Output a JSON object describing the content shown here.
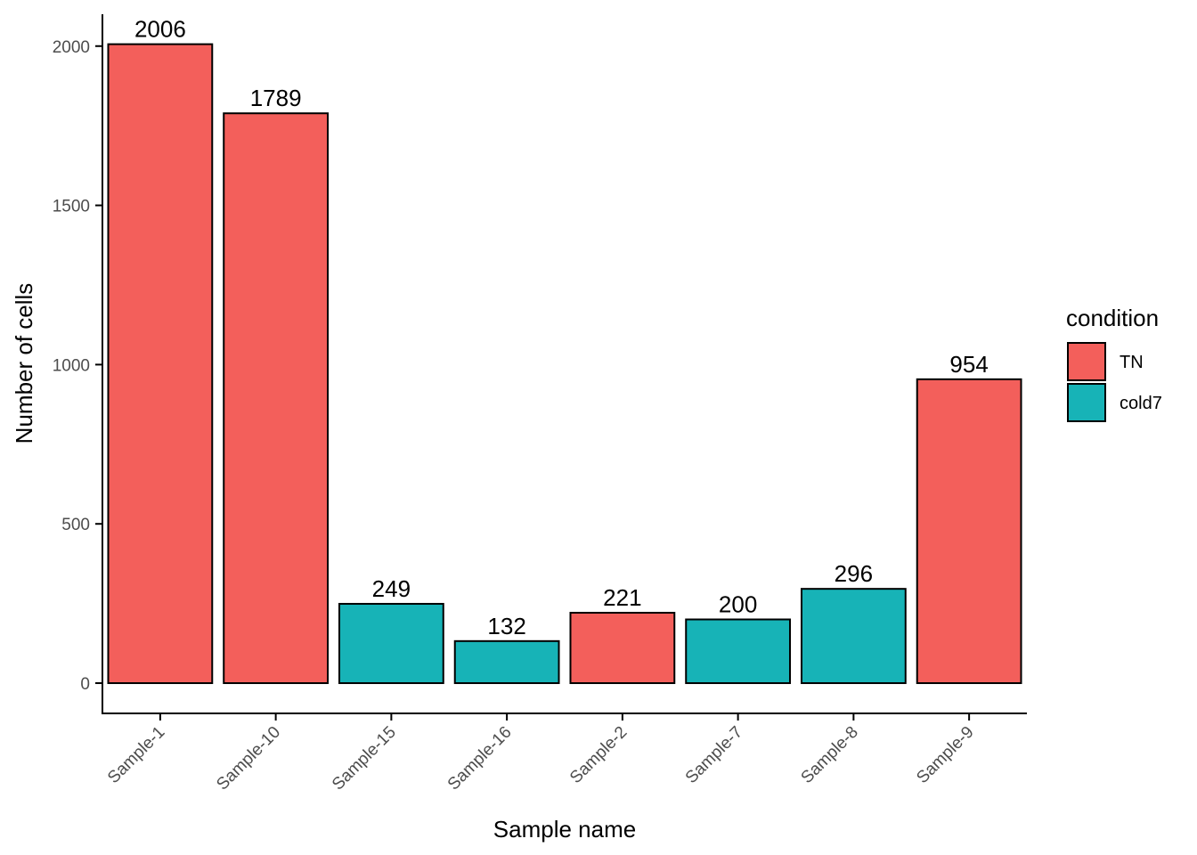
{
  "chart_data": {
    "type": "bar",
    "categories": [
      "Sample-1",
      "Sample-10",
      "Sample-15",
      "Sample-16",
      "Sample-2",
      "Sample-7",
      "Sample-8",
      "Sample-9"
    ],
    "values": [
      2006,
      1789,
      249,
      132,
      221,
      200,
      296,
      954
    ],
    "conditions": [
      "TN",
      "TN",
      "cold7",
      "cold7",
      "TN",
      "cold7",
      "cold7",
      "TN"
    ],
    "xlabel": "Sample name",
    "ylabel": "Number of cells",
    "ylim": [
      -95,
      2100
    ],
    "yticks": [
      0,
      500,
      1000,
      1500,
      2000
    ],
    "grid": false,
    "legend": {
      "title": "condition",
      "placement": "right",
      "entries": [
        {
          "label": "TN",
          "color": "#f35f5b"
        },
        {
          "label": "cold7",
          "color": "#17b3b7"
        }
      ]
    }
  }
}
